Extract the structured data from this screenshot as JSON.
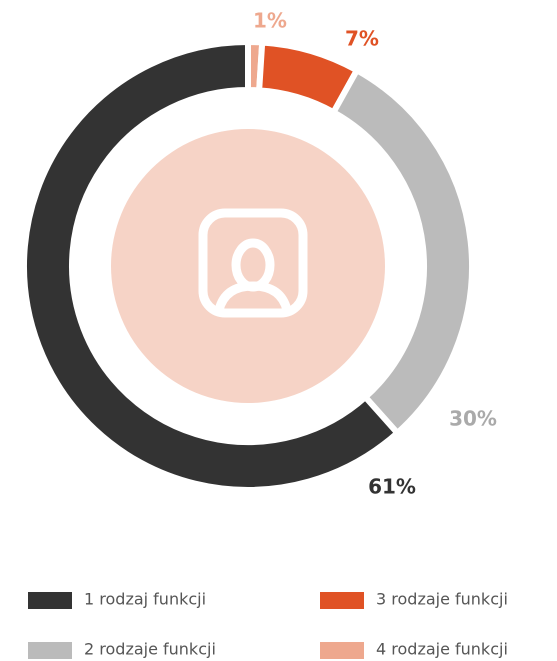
{
  "chart_data": {
    "type": "donut",
    "categories": [
      "1 rodzaj funkcji",
      "2 rodzaje funkcji",
      "3 rodzaje funkcji",
      "4 rodzaje funkcji"
    ],
    "values": [
      61,
      30,
      7,
      1
    ],
    "value_labels": [
      "61%",
      "30%",
      "7%",
      "1%"
    ],
    "colors": [
      "#333333",
      "#bbbbbb",
      "#e05225",
      "#eea88e"
    ],
    "label_colors": [
      "#333333",
      "#aaaaaa",
      "#e05225",
      "#eea88e"
    ]
  }
}
